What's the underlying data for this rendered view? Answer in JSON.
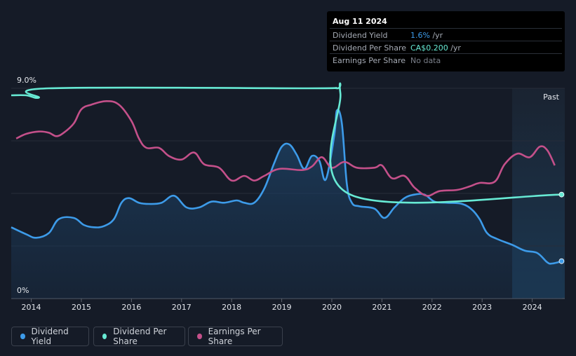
{
  "tooltip": {
    "date": "Aug 11 2024",
    "rows": [
      {
        "label": "Dividend Yield",
        "value": "1.6%",
        "suffix": " /yr",
        "color": "#3d9be9"
      },
      {
        "label": "Dividend Per Share",
        "value": "CA$0.200",
        "suffix": " /yr",
        "color": "#67ead4"
      },
      {
        "label": "Earnings Per Share",
        "value": "No data",
        "suffix": "",
        "color": "#7b808a"
      }
    ]
  },
  "past_label": "Past",
  "legend": [
    {
      "label": "Dividend Yield",
      "color": "#3d9be9"
    },
    {
      "label": "Dividend Per Share",
      "color": "#67ead4"
    },
    {
      "label": "Earnings Per Share",
      "color": "#c4508a"
    }
  ],
  "chart_data": {
    "type": "line",
    "y_tick_labels": [
      "9.0%",
      "0%"
    ],
    "ylim": [
      0,
      9.0
    ],
    "xlim": [
      2013.6,
      2024.65
    ],
    "x_ticks": [
      2014,
      2015,
      2016,
      2017,
      2018,
      2019,
      2020,
      2021,
      2022,
      2023,
      2024
    ],
    "past_region_start": 2023.6,
    "series": [
      {
        "name": "Dividend Yield",
        "color": "#3d9be9",
        "area": true,
        "points": [
          [
            2013.6,
            3.05
          ],
          [
            2013.9,
            2.75
          ],
          [
            2014.1,
            2.6
          ],
          [
            2014.35,
            2.8
          ],
          [
            2014.55,
            3.4
          ],
          [
            2014.85,
            3.45
          ],
          [
            2015.05,
            3.15
          ],
          [
            2015.25,
            3.05
          ],
          [
            2015.45,
            3.1
          ],
          [
            2015.65,
            3.4
          ],
          [
            2015.8,
            4.1
          ],
          [
            2015.95,
            4.3
          ],
          [
            2016.15,
            4.1
          ],
          [
            2016.35,
            4.05
          ],
          [
            2016.6,
            4.1
          ],
          [
            2016.85,
            4.4
          ],
          [
            2017.1,
            3.9
          ],
          [
            2017.35,
            3.9
          ],
          [
            2017.6,
            4.15
          ],
          [
            2017.85,
            4.1
          ],
          [
            2018.1,
            4.2
          ],
          [
            2018.25,
            4.1
          ],
          [
            2018.45,
            4.1
          ],
          [
            2018.65,
            4.7
          ],
          [
            2018.85,
            5.8
          ],
          [
            2019.0,
            6.5
          ],
          [
            2019.15,
            6.6
          ],
          [
            2019.3,
            6.15
          ],
          [
            2019.45,
            5.55
          ],
          [
            2019.6,
            6.1
          ],
          [
            2019.75,
            5.9
          ],
          [
            2019.88,
            5.1
          ],
          [
            2020.05,
            7.0
          ],
          [
            2020.1,
            8.05
          ],
          [
            2020.2,
            7.5
          ],
          [
            2020.3,
            4.9
          ],
          [
            2020.4,
            4.1
          ],
          [
            2020.55,
            3.95
          ],
          [
            2020.85,
            3.85
          ],
          [
            2021.05,
            3.45
          ],
          [
            2021.25,
            3.9
          ],
          [
            2021.45,
            4.3
          ],
          [
            2021.65,
            4.45
          ],
          [
            2021.85,
            4.45
          ],
          [
            2022.05,
            4.15
          ],
          [
            2022.3,
            4.1
          ],
          [
            2022.6,
            4.05
          ],
          [
            2022.8,
            3.8
          ],
          [
            2022.95,
            3.4
          ],
          [
            2023.1,
            2.8
          ],
          [
            2023.3,
            2.55
          ],
          [
            2023.6,
            2.3
          ],
          [
            2023.85,
            2.05
          ],
          [
            2024.1,
            1.95
          ],
          [
            2024.3,
            1.55
          ],
          [
            2024.4,
            1.5
          ],
          [
            2024.6,
            1.6
          ]
        ]
      },
      {
        "name": "Dividend Per Share",
        "color": "#67ead4",
        "area": false,
        "points": [
          [
            2013.6,
            8.7
          ],
          [
            2013.9,
            8.7
          ],
          [
            2014.15,
            8.6
          ],
          [
            2014.35,
            9.0
          ],
          [
            2019.4,
            9.0
          ],
          [
            2020.1,
            9.0
          ],
          [
            2020.17,
            8.8
          ],
          [
            2020.37,
            4.45
          ],
          [
            2024.6,
            4.45
          ]
        ]
      },
      {
        "name": "Earnings Per Share",
        "color": "#c4508a",
        "area": false,
        "points": [
          [
            2013.7,
            6.85
          ],
          [
            2013.9,
            7.05
          ],
          [
            2014.15,
            7.15
          ],
          [
            2014.35,
            7.1
          ],
          [
            2014.5,
            6.95
          ],
          [
            2014.65,
            7.1
          ],
          [
            2014.85,
            7.5
          ],
          [
            2015.0,
            8.1
          ],
          [
            2015.2,
            8.3
          ],
          [
            2015.5,
            8.45
          ],
          [
            2015.75,
            8.3
          ],
          [
            2016.0,
            7.6
          ],
          [
            2016.15,
            6.85
          ],
          [
            2016.3,
            6.45
          ],
          [
            2016.55,
            6.45
          ],
          [
            2016.75,
            6.1
          ],
          [
            2017.0,
            5.95
          ],
          [
            2017.25,
            6.25
          ],
          [
            2017.45,
            5.75
          ],
          [
            2017.75,
            5.6
          ],
          [
            2018.0,
            5.05
          ],
          [
            2018.25,
            5.25
          ],
          [
            2018.45,
            5.05
          ],
          [
            2018.65,
            5.25
          ],
          [
            2018.95,
            5.55
          ],
          [
            2019.4,
            5.5
          ],
          [
            2019.6,
            5.65
          ],
          [
            2019.8,
            6.05
          ],
          [
            2020.0,
            5.6
          ],
          [
            2020.25,
            5.85
          ],
          [
            2020.5,
            5.6
          ],
          [
            2020.85,
            5.6
          ],
          [
            2021.0,
            5.7
          ],
          [
            2021.2,
            5.15
          ],
          [
            2021.45,
            5.25
          ],
          [
            2021.65,
            4.75
          ],
          [
            2021.9,
            4.4
          ],
          [
            2022.15,
            4.6
          ],
          [
            2022.5,
            4.65
          ],
          [
            2022.75,
            4.8
          ],
          [
            2022.95,
            4.95
          ],
          [
            2023.25,
            5.0
          ],
          [
            2023.45,
            5.75
          ],
          [
            2023.7,
            6.2
          ],
          [
            2023.95,
            6.05
          ],
          [
            2024.15,
            6.5
          ],
          [
            2024.3,
            6.35
          ],
          [
            2024.45,
            5.7
          ]
        ]
      }
    ]
  }
}
